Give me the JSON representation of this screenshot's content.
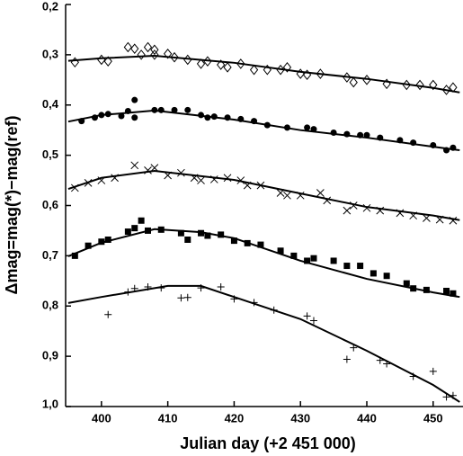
{
  "chart_data": {
    "type": "scatter",
    "x_label": "Julian day (+2 451 000)",
    "y_label": "Δmag=mag(*)−mag(ref)",
    "xlim": [
      394.6,
      454.5
    ],
    "ylim": [
      0.2,
      1.0
    ],
    "y_inverted": true,
    "xticks": [
      400,
      410,
      420,
      430,
      440,
      450
    ],
    "yticks": [
      {
        "value": 0.2,
        "label": "0,2"
      },
      {
        "value": 0.3,
        "label": "0,3"
      },
      {
        "value": 0.4,
        "label": "0,4"
      },
      {
        "value": 0.5,
        "label": "0,5"
      },
      {
        "value": 0.6,
        "label": "0,6"
      },
      {
        "value": 0.7,
        "label": "0,7"
      },
      {
        "value": 0.8,
        "label": "0,8"
      },
      {
        "value": 0.9,
        "label": "0,9"
      },
      {
        "value": 1.0,
        "label": "1,0"
      }
    ],
    "series": [
      {
        "marker": "diamond",
        "color": "#000000",
        "x": [
          396,
          400,
          401,
          404,
          405,
          406,
          407,
          408,
          408,
          410,
          411,
          413,
          415,
          416,
          418,
          419,
          421,
          423,
          425,
          427,
          428,
          430,
          431,
          433,
          437,
          438,
          440,
          443,
          446,
          448,
          450,
          452,
          453
        ],
        "values": [
          0.315,
          0.31,
          0.313,
          0.285,
          0.288,
          0.3,
          0.285,
          0.29,
          0.3,
          0.298,
          0.305,
          0.31,
          0.318,
          0.313,
          0.32,
          0.325,
          0.318,
          0.33,
          0.33,
          0.33,
          0.325,
          0.338,
          0.34,
          0.338,
          0.345,
          0.355,
          0.35,
          0.358,
          0.36,
          0.36,
          0.36,
          0.37,
          0.365
        ]
      },
      {
        "marker": "circle",
        "color": "#000000",
        "x": [
          397,
          399,
          400,
          401,
          403,
          404,
          405,
          405,
          408,
          409,
          411,
          413,
          415,
          416,
          417,
          419,
          421,
          423,
          425,
          428,
          431,
          432,
          435,
          437,
          439,
          440,
          442,
          445,
          447,
          450,
          452,
          453
        ],
        "values": [
          0.432,
          0.425,
          0.42,
          0.418,
          0.422,
          0.412,
          0.39,
          0.425,
          0.41,
          0.41,
          0.41,
          0.41,
          0.42,
          0.425,
          0.423,
          0.425,
          0.428,
          0.432,
          0.44,
          0.445,
          0.445,
          0.448,
          0.455,
          0.458,
          0.46,
          0.46,
          0.465,
          0.47,
          0.475,
          0.48,
          0.49,
          0.485
        ]
      },
      {
        "marker": "cross",
        "color": "#000000",
        "x": [
          396,
          398,
          400,
          402,
          405,
          407,
          408,
          410,
          412,
          414,
          415,
          417,
          419,
          421,
          422,
          424,
          427,
          428,
          430,
          433,
          434,
          437,
          438,
          440,
          442,
          445,
          447,
          449,
          451,
          453
        ],
        "values": [
          0.565,
          0.555,
          0.55,
          0.545,
          0.52,
          0.53,
          0.525,
          0.54,
          0.535,
          0.545,
          0.55,
          0.548,
          0.545,
          0.55,
          0.56,
          0.56,
          0.575,
          0.58,
          0.58,
          0.575,
          0.59,
          0.61,
          0.6,
          0.605,
          0.61,
          0.615,
          0.62,
          0.625,
          0.628,
          0.63
        ]
      },
      {
        "marker": "square",
        "color": "#000000",
        "x": [
          396,
          398,
          400,
          401,
          404,
          405,
          406,
          407,
          409,
          412,
          413,
          415,
          416,
          418,
          420,
          422,
          424,
          427,
          429,
          431,
          432,
          435,
          437,
          439,
          441,
          443,
          446,
          447,
          449,
          452,
          453
        ],
        "values": [
          0.7,
          0.68,
          0.672,
          0.668,
          0.652,
          0.645,
          0.63,
          0.65,
          0.648,
          0.655,
          0.668,
          0.655,
          0.66,
          0.658,
          0.67,
          0.675,
          0.678,
          0.69,
          0.7,
          0.71,
          0.705,
          0.71,
          0.72,
          0.72,
          0.735,
          0.74,
          0.755,
          0.765,
          0.768,
          0.77,
          0.775
        ]
      },
      {
        "marker": "plus",
        "color": "#000000",
        "x": [
          401,
          404,
          405,
          407,
          409,
          412,
          413,
          415,
          418,
          420,
          423,
          426,
          431,
          432,
          437,
          438,
          442,
          443,
          447,
          450,
          452,
          453
        ],
        "values": [
          0.817,
          0.772,
          0.765,
          0.762,
          0.764,
          0.784,
          0.783,
          0.764,
          0.762,
          0.786,
          0.793,
          0.808,
          0.82,
          0.829,
          0.906,
          0.883,
          0.908,
          0.915,
          0.94,
          0.93,
          0.981,
          0.978
        ]
      },
      {
        "marker": "line",
        "color": "#000000",
        "x": [
          395,
          400,
          408,
          420,
          430,
          440,
          450,
          454
        ],
        "values": [
          0.312,
          0.307,
          0.302,
          0.316,
          0.334,
          0.348,
          0.366,
          0.375
        ]
      },
      {
        "marker": "line",
        "color": "#000000",
        "x": [
          395,
          400,
          408,
          420,
          430,
          440,
          450,
          454
        ],
        "values": [
          0.433,
          0.42,
          0.411,
          0.429,
          0.45,
          0.465,
          0.483,
          0.49
        ]
      },
      {
        "marker": "line",
        "color": "#000000",
        "x": [
          395,
          400,
          408,
          420,
          430,
          440,
          450,
          454
        ],
        "values": [
          0.567,
          0.545,
          0.531,
          0.549,
          0.576,
          0.603,
          0.62,
          0.629
        ]
      },
      {
        "marker": "line",
        "color": "#000000",
        "x": [
          395,
          400,
          408,
          415,
          420,
          430,
          440,
          450,
          454
        ],
        "values": [
          0.701,
          0.674,
          0.647,
          0.653,
          0.665,
          0.71,
          0.746,
          0.773,
          0.782
        ]
      },
      {
        "marker": "line",
        "color": "#000000",
        "x": [
          395,
          400,
          410,
          415,
          420,
          430,
          440,
          450,
          454
        ],
        "values": [
          0.794,
          0.782,
          0.76,
          0.76,
          0.782,
          0.826,
          0.889,
          0.957,
          0.991
        ]
      }
    ]
  }
}
